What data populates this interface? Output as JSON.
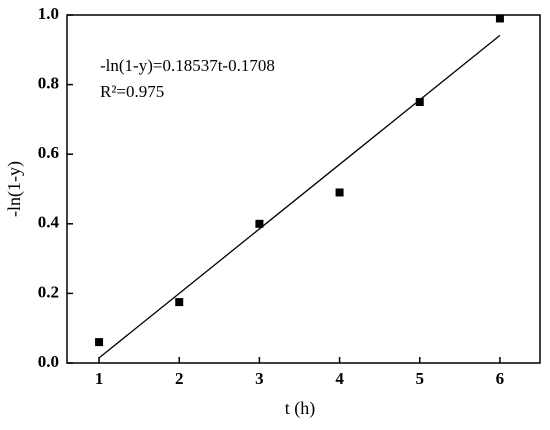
{
  "chart_data": {
    "type": "scatter",
    "x_label": "t (h)",
    "y_label": "-ln(1-y)",
    "annotations": [
      "-ln(1-y)=0.18537t-0.1708",
      "R²=0.975"
    ],
    "x": [
      1,
      2,
      3,
      4,
      5,
      6
    ],
    "values": [
      0.06,
      0.175,
      0.4,
      0.49,
      0.75,
      0.99
    ],
    "color": "#000000",
    "fit": {
      "x": [
        1,
        6
      ],
      "values": [
        0.0146,
        0.9414
      ],
      "color": "#000000"
    },
    "xlim": [
      0.6,
      6.5
    ],
    "xticks": [
      1,
      2,
      3,
      4,
      5,
      6
    ],
    "ylim": [
      0,
      1
    ],
    "yticks": [
      {
        "value": 0,
        "label": "0.0"
      },
      0.2,
      0.4,
      0.6,
      0.8,
      {
        "value": 1,
        "label": "1.0"
      }
    ]
  }
}
